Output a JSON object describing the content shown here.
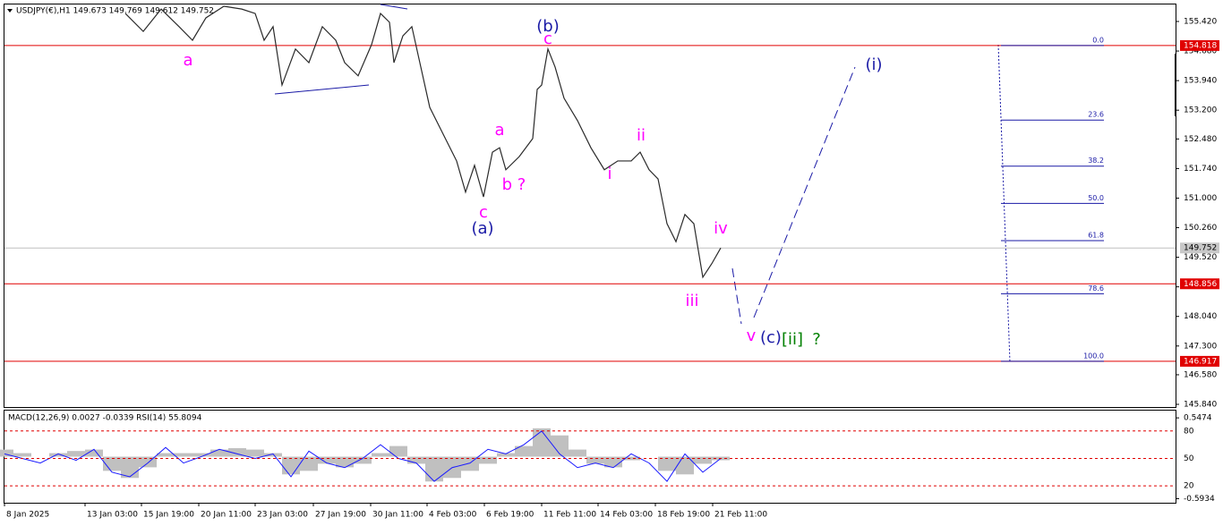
{
  "header": "USDJPY(€),H1  149.673 149.769 149.612 149.752",
  "chart_data": {
    "type": "line",
    "color": "#2a2a2a",
    "x": [
      135,
      155,
      175,
      195,
      210,
      225,
      245,
      265,
      280,
      290,
      300,
      310,
      325,
      340,
      355,
      370,
      380,
      395,
      410,
      420,
      430,
      435,
      445,
      455,
      465,
      475,
      490,
      505,
      515,
      525,
      535,
      545,
      553,
      560,
      575,
      590,
      595,
      600,
      607,
      615,
      625,
      640,
      655,
      670,
      685,
      700,
      710,
      720,
      730,
      740,
      750,
      760,
      770,
      780,
      790,
      800
    ],
    "values": [
      155.62,
      155.17,
      155.73,
      155.29,
      154.95,
      155.51,
      155.8,
      155.73,
      155.62,
      154.95,
      155.29,
      153.83,
      154.73,
      154.39,
      155.29,
      154.95,
      154.39,
      154.06,
      154.84,
      155.62,
      155.4,
      154.39,
      155.06,
      155.29,
      154.28,
      153.27,
      152.6,
      151.93,
      151.15,
      151.82,
      151.03,
      152.15,
      152.26,
      151.71,
      152.04,
      152.49,
      153.72,
      153.83,
      154.73,
      154.28,
      153.5,
      152.94,
      152.26,
      151.71,
      151.93,
      151.93,
      152.15,
      151.71,
      151.48,
      150.36,
      149.91,
      150.59,
      150.36,
      149.02,
      149.36,
      149.752
    ],
    "xlim": [
      0,
      1308
    ],
    "xticks": [
      {
        "value": 0,
        "label": "8 Jan 2025"
      },
      {
        "value": 90,
        "label": "13 Jan 03:00"
      },
      {
        "value": 153,
        "label": "15 Jan 19:00"
      },
      {
        "value": 217,
        "label": "20 Jan 11:00"
      },
      {
        "value": 280,
        "label": "23 Jan 03:00"
      },
      {
        "value": 345,
        "label": "27 Jan 19:00"
      },
      {
        "value": 409,
        "label": "30 Jan 11:00"
      },
      {
        "value": 472,
        "label": "4 Feb 03:00"
      },
      {
        "value": 536,
        "label": "6 Feb 19:00"
      },
      {
        "value": 600,
        "label": "11 Feb 11:00"
      },
      {
        "value": 663,
        "label": "14 Feb 03:00"
      },
      {
        "value": 727,
        "label": "18 Feb 19:00"
      },
      {
        "value": 791,
        "label": "21 Feb 11:00"
      }
    ],
    "ylim": [
      145.773,
      155.845
    ],
    "yticks": [
      {
        "value": 155.42,
        "label": "155.420"
      },
      {
        "value": 154.68,
        "label": "154.680"
      },
      {
        "value": 153.94,
        "label": "153.940"
      },
      {
        "value": 153.2,
        "label": "153.200"
      },
      {
        "value": 152.48,
        "label": "152.480"
      },
      {
        "value": 151.74,
        "label": "151.740"
      },
      {
        "value": 151.0,
        "label": "151.000"
      },
      {
        "value": 150.26,
        "label": "150.260"
      },
      {
        "value": 149.52,
        "label": "149.520"
      },
      {
        "value": 148.78,
        "label": "148.780"
      },
      {
        "value": 148.04,
        "label": "148.040"
      },
      {
        "value": 147.3,
        "label": "147.300"
      },
      {
        "value": 146.58,
        "label": "146.580"
      },
      {
        "value": 145.84,
        "label": "145.840"
      }
    ],
    "hlines": [
      154.818,
      148.856,
      146.917
    ],
    "hline_color": "#e00000",
    "current_price": 149.752,
    "fib": {
      "color": "#1a1aa6",
      "levels": [
        {
          "value": 0,
          "label": "0.0"
        },
        23.6,
        38.2,
        {
          "value": 50,
          "label": "50.0"
        },
        61.8,
        78.6,
        {
          "value": 100,
          "label": "100.0"
        }
      ]
    },
    "annotations": [
      {
        "text": "a",
        "color": "#ff00ff"
      },
      {
        "text": "(b)",
        "color": "#1a1aa6"
      },
      {
        "text": "c",
        "color": "#ff00ff"
      },
      {
        "text": "(i)",
        "color": "#1a1aa6"
      },
      {
        "text": "a",
        "color": "#ff00ff"
      },
      {
        "text": "ii",
        "color": "#ff00ff"
      },
      {
        "text": "b ?",
        "color": "#ff00ff"
      },
      {
        "text": "c",
        "color": "#ff00ff"
      },
      {
        "text": "(a)",
        "color": "#1a1aa6"
      },
      {
        "text": "i",
        "color": "#ff00ff"
      },
      {
        "text": "iv",
        "color": "#ff00ff"
      },
      {
        "text": "iii",
        "color": "#ff00ff"
      },
      {
        "text": "v",
        "color": "#ff00ff"
      },
      {
        "text": "(c)",
        "color": "#1a1aa6"
      },
      {
        "text": "[ii]",
        "color": "#008000"
      },
      {
        "text": "?",
        "color": "#008000"
      }
    ],
    "indicator": {
      "title": "MACD(12,26,9) 0.0027 -0.0339 RSI(14) 55.8094",
      "x": [
        0,
        20,
        40,
        60,
        80,
        100,
        120,
        140,
        160,
        180,
        200,
        220,
        240,
        260,
        280,
        300,
        320,
        340,
        360,
        380,
        400,
        420,
        440,
        460,
        480,
        500,
        520,
        540,
        560,
        580,
        600,
        620,
        640,
        660,
        680,
        700,
        720,
        740,
        760,
        780,
        800
      ],
      "macd": [
        0.1,
        0.05,
        0,
        0.05,
        0.08,
        0.1,
        -0.2,
        -0.3,
        -0.15,
        0.05,
        0.05,
        0.05,
        0.1,
        0.12,
        0.1,
        0.05,
        -0.25,
        -0.2,
        -0.1,
        -0.15,
        -0.1,
        0.05,
        0.15,
        -0.1,
        -0.35,
        -0.3,
        -0.2,
        -0.1,
        0.05,
        0.15,
        0.4,
        0.3,
        0.1,
        -0.1,
        -0.15,
        -0.05,
        0,
        -0.2,
        -0.25,
        -0.1,
        -0.05
      ],
      "rsi": [
        55,
        50,
        45,
        55,
        48,
        60,
        35,
        30,
        45,
        62,
        45,
        52,
        60,
        55,
        50,
        55,
        30,
        58,
        45,
        40,
        50,
        65,
        50,
        45,
        25,
        40,
        45,
        60,
        55,
        65,
        80,
        55,
        40,
        45,
        40,
        55,
        45,
        25,
        55,
        35,
        50
      ],
      "macd_lim": [
        -0.65,
        0.65
      ],
      "macd_ticks": [
        0.5474,
        -0.5934
      ],
      "rsi_lim": [
        1.6,
        102.3
      ],
      "rsi_ticks": [
        80,
        50,
        20
      ]
    }
  }
}
